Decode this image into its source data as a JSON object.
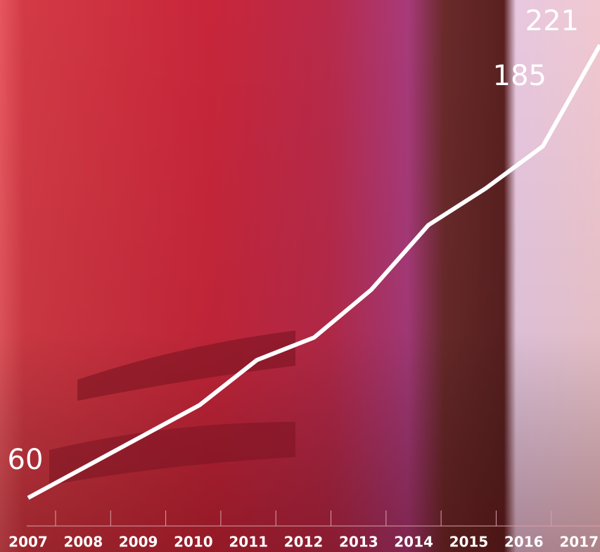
{
  "chart_data": {
    "type": "line",
    "categories": [
      "2007",
      "2008",
      "2009",
      "2010",
      "2011",
      "2012",
      "2013",
      "2014",
      "2015",
      "2016",
      "2017"
    ],
    "values": [
      60,
      71,
      82,
      93,
      109,
      117,
      134,
      157,
      170,
      185,
      221
    ],
    "value_labels": [
      60,
      null,
      null,
      null,
      null,
      null,
      null,
      null,
      null,
      185,
      221
    ],
    "color": "#ffffff",
    "ylim": [
      50,
      237
    ]
  }
}
